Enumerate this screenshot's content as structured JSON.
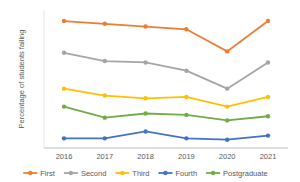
{
  "chart_data": {
    "type": "line",
    "y_label": "Percentage of students failing",
    "categories": [
      "2016",
      "2017",
      "2018",
      "2019",
      "2020",
      "2021"
    ],
    "series": [
      {
        "name": "First",
        "color": "#ed7d31",
        "values": [
          92,
          90,
          88,
          86,
          70,
          92
        ]
      },
      {
        "name": "Second",
        "color": "#a5a5a5",
        "values": [
          69,
          63,
          62,
          56,
          43,
          62
        ]
      },
      {
        "name": "Third",
        "color": "#ffc000",
        "values": [
          43,
          38,
          36,
          37,
          30,
          37
        ]
      },
      {
        "name": "Fourth",
        "color": "#4472c4",
        "values": [
          7,
          7,
          12,
          7,
          6,
          9
        ]
      },
      {
        "name": "Postgraduate",
        "color": "#70ad47",
        "values": [
          30,
          22,
          25,
          24,
          20,
          23
        ]
      }
    ],
    "ylim": [
      0,
      100
    ],
    "tick_labels": "x",
    "grid": false,
    "legend": "bottom",
    "marker": "circle",
    "line_style": "solid"
  }
}
